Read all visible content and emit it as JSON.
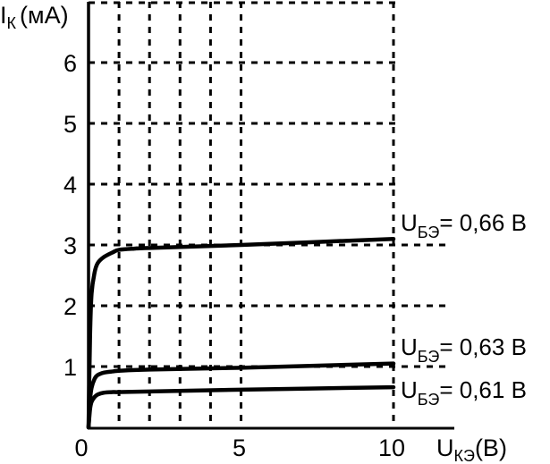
{
  "chart_data": {
    "type": "line",
    "title": "",
    "ylabel": {
      "main": "I",
      "sub": "К",
      "unit": "(мА)"
    },
    "xlabel": {
      "main": "U",
      "sub": "КЭ",
      "unit": "(В)"
    },
    "xlim": [
      0,
      12
    ],
    "ylim": [
      0,
      7
    ],
    "x_ticks": [
      0,
      5,
      10
    ],
    "x_tick_labels": [
      "0",
      "5",
      "10"
    ],
    "y_ticks": [
      1,
      2,
      3,
      4,
      5,
      6
    ],
    "y_tick_labels": [
      "1",
      "2",
      "3",
      "4",
      "5",
      "6"
    ],
    "grid": {
      "on": true,
      "style": "dashed",
      "vertical_x": [
        1,
        2,
        3,
        4,
        5,
        10
      ],
      "horizontal_y": [
        1,
        2,
        3,
        4,
        5,
        6,
        7
      ]
    },
    "legend_position": "inline-right",
    "series": [
      {
        "name": "U_БЭ = 0,66 В",
        "label_main": "U",
        "label_sub": "БЭ",
        "label_value": "= 0,66 В",
        "x": [
          0,
          0.05,
          0.1,
          0.2,
          0.3,
          0.5,
          0.8,
          1,
          1.5,
          2,
          5,
          10
        ],
        "y": [
          0,
          1.5,
          2.2,
          2.55,
          2.7,
          2.8,
          2.88,
          2.92,
          2.94,
          2.95,
          3.0,
          3.1
        ]
      },
      {
        "name": "U_БЭ = 0,63 В",
        "label_main": "U",
        "label_sub": "БЭ",
        "label_value": "= 0,63 В",
        "x": [
          0,
          0.05,
          0.1,
          0.2,
          0.3,
          0.5,
          0.8,
          1,
          2,
          5,
          10
        ],
        "y": [
          0,
          0.45,
          0.65,
          0.8,
          0.86,
          0.9,
          0.92,
          0.93,
          0.95,
          0.98,
          1.05
        ]
      },
      {
        "name": "U_БЭ = 0,61 В",
        "label_main": "U",
        "label_sub": "БЭ",
        "label_value": "= 0,61 В",
        "x": [
          0,
          0.05,
          0.1,
          0.2,
          0.3,
          0.5,
          0.8,
          1,
          2,
          5,
          10
        ],
        "y": [
          0,
          0.3,
          0.42,
          0.5,
          0.54,
          0.57,
          0.58,
          0.58,
          0.59,
          0.62,
          0.66
        ]
      }
    ]
  }
}
